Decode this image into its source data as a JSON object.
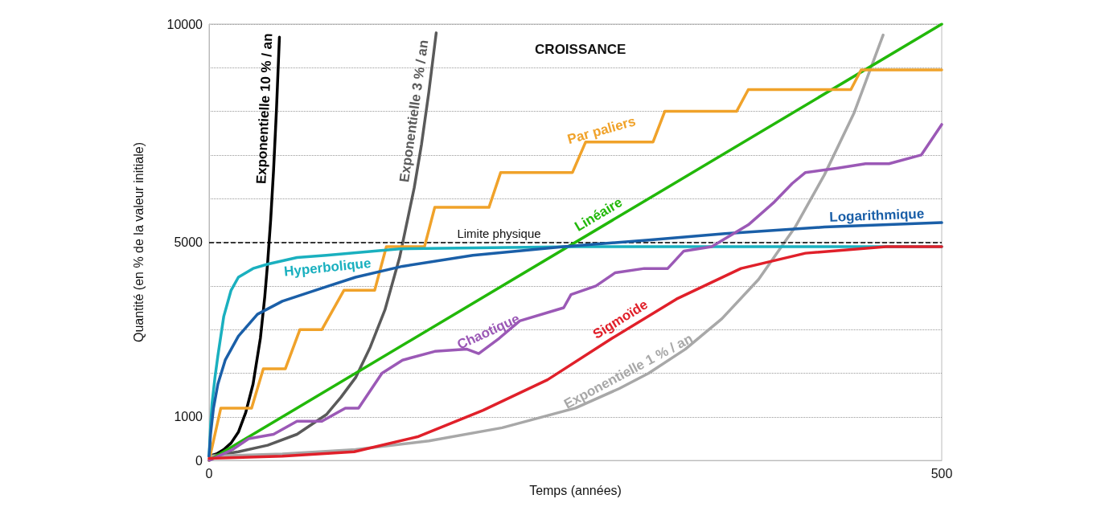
{
  "chart_data": {
    "type": "line",
    "title": "CROISSANCE",
    "xlabel": "Temps (années)",
    "ylabel": "Quantité (en % de la valeur initiale)",
    "xlim": [
      0,
      500
    ],
    "xticks": [
      0,
      500
    ],
    "ylim": [
      0,
      10000
    ],
    "yticks": [
      0,
      1000,
      {
        "value": 2000,
        "label": null
      },
      {
        "value": 3000,
        "label": null
      },
      {
        "value": 4000,
        "label": null
      },
      5000,
      {
        "value": 6000,
        "label": null
      },
      {
        "value": 7000,
        "label": null
      },
      {
        "value": 8000,
        "label": null
      },
      {
        "value": 9000,
        "label": null
      },
      10000
    ],
    "grid": "y",
    "marker": "none",
    "line_style": "solid",
    "series": [
      {
        "color": "#000000",
        "x": [
          0,
          5,
          10,
          15,
          20,
          25,
          30,
          35,
          38,
          40,
          42,
          44,
          46,
          48
        ],
        "values": [
          100,
          150,
          250,
          400,
          650,
          1100,
          1750,
          2800,
          3750,
          4550,
          5500,
          6650,
          8050,
          9700
        ]
      },
      {
        "color": "#5a5a5a",
        "x": [
          0,
          20,
          40,
          60,
          80,
          90,
          100,
          110,
          120,
          130,
          140,
          145,
          150,
          155
        ],
        "values": [
          100,
          200,
          350,
          600,
          1050,
          1450,
          1900,
          2600,
          3450,
          4650,
          6250,
          7250,
          8450,
          9800
        ]
      },
      {
        "color": "#a8a8a8",
        "x": [
          0,
          50,
          100,
          150,
          200,
          250,
          280,
          300,
          325,
          350,
          375,
          400,
          420,
          440,
          460
        ],
        "values": [
          100,
          150,
          250,
          450,
          750,
          1200,
          1650,
          2000,
          2550,
          3250,
          4150,
          5350,
          6550,
          7950,
          9750
        ]
      },
      {
        "color": "#22b80a",
        "x": [
          0,
          500
        ],
        "values": [
          0,
          10000
        ]
      },
      {
        "color": "#f0a22a",
        "x": [
          0,
          8,
          29,
          37,
          52,
          62,
          77,
          92,
          113,
          121,
          147,
          154,
          191,
          199,
          248,
          257,
          303,
          311,
          360,
          368,
          438,
          445,
          500
        ],
        "values": [
          0,
          1200,
          1200,
          2100,
          2100,
          3000,
          3000,
          3900,
          3900,
          4900,
          4900,
          5800,
          5800,
          6600,
          6600,
          7300,
          7300,
          8000,
          8000,
          8500,
          8500,
          8950,
          8950
        ]
      },
      {
        "color": "#1ab0bf",
        "x": [
          0,
          1,
          2,
          4,
          6,
          10,
          15,
          20,
          30,
          40,
          60,
          80,
          130,
          250,
          500
        ],
        "values": [
          100,
          800,
          1300,
          1900,
          2400,
          3300,
          3900,
          4200,
          4400,
          4500,
          4650,
          4700,
          4850,
          4900,
          4900
        ]
      },
      {
        "color": "#1a5fa8",
        "x": [
          0,
          1,
          3,
          6,
          11,
          20,
          33,
          50,
          77,
          100,
          132,
          180,
          242,
          300,
          352,
          420,
          500
        ],
        "values": [
          100,
          600,
          1200,
          1750,
          2300,
          2850,
          3350,
          3650,
          3950,
          4200,
          4450,
          4700,
          4900,
          5050,
          5200,
          5350,
          5450
        ]
      },
      {
        "color": "#9b59b6",
        "x": [
          0,
          16,
          27,
          44,
          60,
          77,
          93,
          102,
          118,
          132,
          154,
          176,
          184,
          198,
          212,
          242,
          247,
          264,
          277,
          297,
          313,
          324,
          343,
          368,
          385,
          398,
          407,
          429,
          448,
          464,
          486,
          500
        ],
        "values": [
          0,
          250,
          500,
          600,
          900,
          900,
          1200,
          1200,
          2000,
          2300,
          2500,
          2550,
          2450,
          2800,
          3200,
          3500,
          3800,
          4000,
          4300,
          4400,
          4400,
          4800,
          4900,
          5400,
          5900,
          6350,
          6600,
          6700,
          6800,
          6800,
          7000,
          7700
        ]
      },
      {
        "color": "#e0202a",
        "x": [
          0,
          50,
          99,
          143,
          187,
          231,
          275,
          319,
          363,
          407,
          462,
          500
        ],
        "values": [
          50,
          100,
          200,
          550,
          1150,
          1850,
          2800,
          3700,
          4400,
          4750,
          4900,
          4900
        ]
      }
    ],
    "ref_lines": [
      {
        "axis": "y",
        "value": 5000,
        "label": "Limite physique",
        "color": "#000000",
        "line_style": "dashed"
      }
    ],
    "annotations": [
      {
        "text": "Exponentielle 10 % / an",
        "x": 46,
        "y": 8050
      },
      {
        "text": "Exponentielle 3 % / an",
        "x": 148,
        "y": 7970
      },
      {
        "text": "Par paliers",
        "x": 270,
        "y": 7300
      },
      {
        "text": "Linéaire",
        "x": 270,
        "y": 5400
      },
      {
        "text": "Logarithmique",
        "x": 456,
        "y": 5340
      },
      {
        "text": "Hyperbolique",
        "x": 80,
        "y": 4700
      },
      {
        "text": "Chaotique",
        "x": 194,
        "y": 2700
      },
      {
        "text": "Sigmoïde",
        "x": 285,
        "y": 3000
      },
      {
        "text": "Exponentielle 1 % / an",
        "x": 290,
        "y": 1800
      }
    ]
  }
}
